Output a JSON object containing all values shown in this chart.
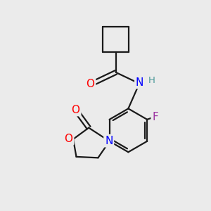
{
  "bg_color": "#ebebeb",
  "bond_color": "#1a1a1a",
  "bond_width": 1.6,
  "figsize": [
    3.0,
    3.0
  ],
  "dpi": 100,
  "xlim": [
    0,
    10
  ],
  "ylim": [
    0,
    10
  ]
}
